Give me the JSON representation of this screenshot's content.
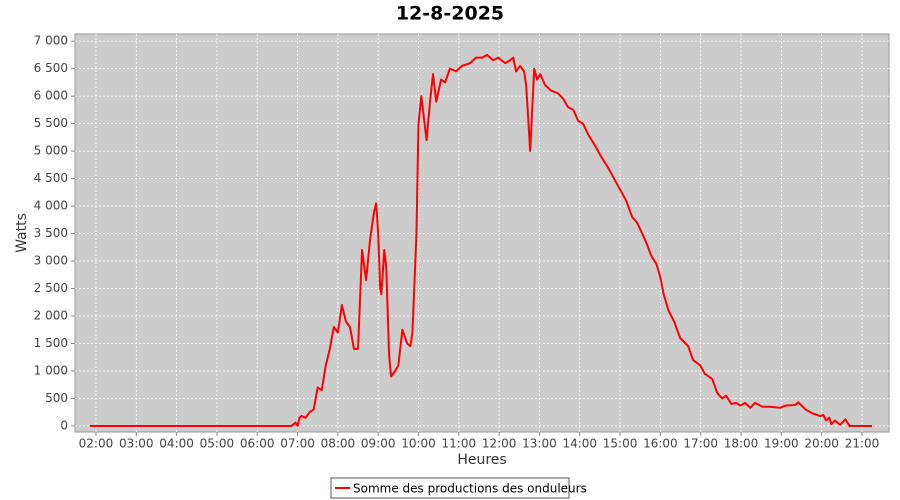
{
  "chart_data": {
    "type": "line",
    "title": "12-8-2025",
    "x_label": "Heures",
    "y_label": "Watts",
    "xlim": [
      1.48,
      21.67
    ],
    "ylim": [
      -110,
      7130
    ],
    "xticks": [
      {
        "value": 2,
        "label": "02:00"
      },
      {
        "value": 3,
        "label": "03:00"
      },
      {
        "value": 4,
        "label": "04:00"
      },
      {
        "value": 5,
        "label": "05:00"
      },
      {
        "value": 6,
        "label": "06:00"
      },
      {
        "value": 7,
        "label": "07:00"
      },
      {
        "value": 8,
        "label": "08:00"
      },
      {
        "value": 9,
        "label": "09:00"
      },
      {
        "value": 10,
        "label": "10:00"
      },
      {
        "value": 11,
        "label": "11:00"
      },
      {
        "value": 12,
        "label": "12:00"
      },
      {
        "value": 13,
        "label": "13:00"
      },
      {
        "value": 14,
        "label": "14:00"
      },
      {
        "value": 15,
        "label": "15:00"
      },
      {
        "value": 16,
        "label": "16:00"
      },
      {
        "value": 17,
        "label": "17:00"
      },
      {
        "value": 18,
        "label": "18:00"
      },
      {
        "value": 19,
        "label": "19:00"
      },
      {
        "value": 20,
        "label": "20:00"
      },
      {
        "value": 21,
        "label": "21:00"
      }
    ],
    "yticks": [
      0,
      500,
      {
        "value": 1000,
        "label": "1 000"
      },
      {
        "value": 1500,
        "label": "1 500"
      },
      {
        "value": 2000,
        "label": "2 000"
      },
      {
        "value": 2500,
        "label": "2 500"
      },
      {
        "value": 3000,
        "label": "3 000"
      },
      {
        "value": 3500,
        "label": "3 500"
      },
      {
        "value": 4000,
        "label": "4 000"
      },
      {
        "value": 4500,
        "label": "4 500"
      },
      {
        "value": 5000,
        "label": "5 000"
      },
      {
        "value": 5500,
        "label": "5 500"
      },
      {
        "value": 6000,
        "label": "6 000"
      },
      {
        "value": 6500,
        "label": "6 500"
      },
      {
        "value": 7000,
        "label": "7 000"
      }
    ],
    "grid": true,
    "legend": "bottom",
    "x": [
      1.85,
      6.85,
      6.9,
      6.95,
      7.0,
      7.05,
      7.1,
      7.2,
      7.3,
      7.4,
      7.5,
      7.6,
      7.7,
      7.8,
      7.9,
      8.0,
      8.1,
      8.2,
      8.3,
      8.4,
      8.5,
      8.6,
      8.7,
      8.8,
      8.9,
      8.95,
      9.0,
      9.05,
      9.08,
      9.15,
      9.2,
      9.27,
      9.32,
      9.42,
      9.5,
      9.6,
      9.72,
      9.8,
      9.85,
      9.95,
      10.0,
      10.07,
      10.2,
      10.3,
      10.36,
      10.44,
      10.56,
      10.66,
      10.78,
      10.93,
      11.08,
      11.28,
      11.43,
      11.58,
      11.7,
      11.85,
      11.98,
      12.15,
      12.27,
      12.35,
      12.42,
      12.52,
      12.62,
      12.67,
      12.77,
      12.87,
      12.94,
      13.02,
      13.14,
      13.29,
      13.46,
      13.59,
      13.71,
      13.84,
      13.96,
      14.08,
      14.21,
      14.38,
      14.53,
      14.7,
      14.85,
      15.0,
      15.15,
      15.3,
      15.42,
      15.55,
      15.67,
      15.77,
      15.9,
      16.0,
      16.08,
      16.2,
      16.34,
      16.49,
      16.69,
      16.81,
      16.99,
      17.1,
      17.29,
      17.41,
      17.53,
      17.63,
      17.76,
      17.88,
      17.98,
      18.1,
      18.23,
      18.35,
      18.53,
      18.72,
      18.97,
      19.1,
      19.34,
      19.42,
      19.6,
      19.77,
      19.96,
      20.04,
      20.11,
      20.19,
      20.24,
      20.33,
      20.46,
      20.59,
      20.69,
      21.25
    ],
    "series": [
      {
        "name": "Somme des productions des onduleurs",
        "color": "#ff0000",
        "values": [
          0,
          0,
          30,
          60,
          0,
          150,
          180,
          150,
          250,
          300,
          700,
          650,
          1100,
          1400,
          1800,
          1700,
          2200,
          1900,
          1800,
          1400,
          1400,
          3200,
          2650,
          3400,
          3900,
          4050,
          3500,
          2500,
          2400,
          3200,
          2900,
          1300,
          900,
          1000,
          1100,
          1750,
          1500,
          1450,
          1700,
          3500,
          5500,
          6000,
          5200,
          6000,
          6400,
          5900,
          6300,
          6250,
          6500,
          6450,
          6550,
          6600,
          6700,
          6700,
          6750,
          6650,
          6700,
          6600,
          6650,
          6700,
          6450,
          6550,
          6450,
          6200,
          5000,
          6500,
          6300,
          6400,
          6200,
          6100,
          6050,
          5950,
          5800,
          5750,
          5550,
          5500,
          5300,
          5100,
          4900,
          4700,
          4500,
          4300,
          4100,
          3800,
          3700,
          3500,
          3300,
          3100,
          2950,
          2700,
          2400,
          2100,
          1900,
          1600,
          1450,
          1200,
          1100,
          950,
          850,
          600,
          500,
          550,
          400,
          420,
          370,
          420,
          330,
          420,
          350,
          350,
          330,
          370,
          380,
          430,
          300,
          230,
          180,
          200,
          100,
          150,
          30,
          100,
          20,
          120,
          0,
          0
        ]
      }
    ]
  }
}
